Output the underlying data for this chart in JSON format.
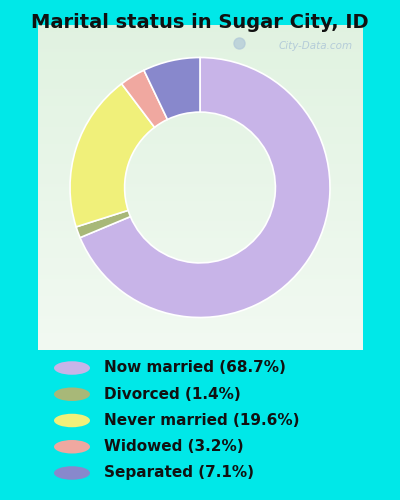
{
  "title": "Marital status in Sugar City, ID",
  "slices": [
    68.7,
    1.4,
    19.6,
    3.2,
    7.1
  ],
  "labels": [
    "Now married (68.7%)",
    "Divorced (1.4%)",
    "Never married (19.6%)",
    "Widowed (3.2%)",
    "Separated (7.1%)"
  ],
  "colors": [
    "#c8b4e8",
    "#a8b878",
    "#f0f07a",
    "#f0a8a0",
    "#8888cc"
  ],
  "bg_outer": "#00e8e8",
  "bg_chart": "#e8f5e8",
  "watermark": "City-Data.com",
  "title_fontsize": 14,
  "legend_fontsize": 11,
  "donut_width": 0.42,
  "start_angle": 90
}
